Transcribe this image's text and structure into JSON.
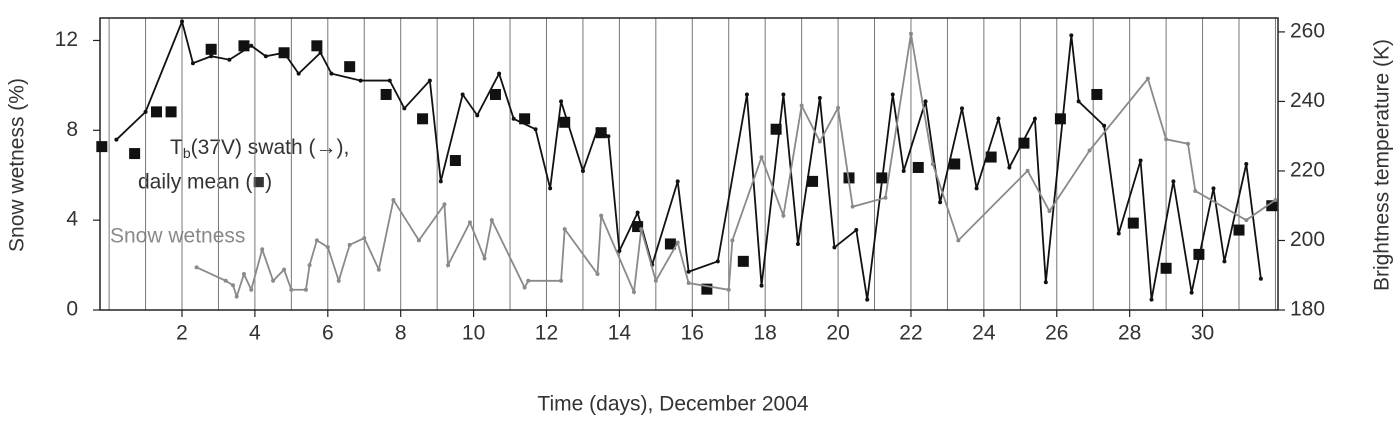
{
  "chart_data": {
    "type": "line",
    "xlabel": "Time (days), December 2004",
    "ylabel": "Snow wetness (%)",
    "y2label": "Brightness temperature (K)",
    "annotation": {
      "base": "T",
      "sub": "b",
      "line1": "(37V) swath (→),",
      "line2": "daily mean (■)"
    },
    "xlim": [
      -0.25,
      32.07
    ],
    "xticks": [
      2,
      4,
      6,
      8,
      10,
      12,
      14,
      16,
      18,
      20,
      22,
      24,
      26,
      28,
      30
    ],
    "xgrid": [
      0,
      1,
      2,
      3,
      4,
      5,
      6,
      7,
      8,
      9,
      10,
      11,
      12,
      13,
      14,
      15,
      16,
      17,
      18,
      19,
      20,
      21,
      22,
      23,
      24,
      25,
      26,
      27,
      28,
      29,
      30,
      31,
      32
    ],
    "ylim": [
      0,
      13
    ],
    "yticks": [
      0,
      4,
      8,
      12
    ],
    "y2lim": [
      180,
      264
    ],
    "y2ticks": [
      180,
      200,
      220,
      240,
      260
    ],
    "series": [
      {
        "color": "#111111",
        "axis": "y2",
        "marker": "dot",
        "line": true,
        "x": [
          0.2,
          1.0,
          2.0,
          2.3,
          2.8,
          3.3,
          3.9,
          4.3,
          4.8,
          5.2,
          5.8,
          6.1,
          6.9,
          7.7,
          8.1,
          8.8,
          9.1,
          9.7,
          10.1,
          10.7,
          11.1,
          11.7,
          12.1,
          12.4,
          13.0,
          13.4,
          13.7,
          14.0,
          14.5,
          14.9,
          15.6,
          15.9,
          16.7,
          17.5,
          17.9,
          18.5,
          18.9,
          19.5,
          19.9,
          20.5,
          20.8,
          21.5,
          21.8,
          22.4,
          22.8,
          23.4,
          23.8,
          24.4,
          24.7,
          25.4,
          25.7,
          26.4,
          26.6,
          27.3,
          27.7,
          28.3,
          28.6,
          29.2,
          29.7,
          30.3,
          30.6,
          31.2,
          31.6
        ],
        "values": [
          229,
          237,
          263,
          251,
          253,
          252,
          256,
          253,
          254,
          248,
          254,
          248,
          246,
          246,
          238,
          246,
          217,
          242,
          236,
          248,
          235,
          232,
          215,
          240,
          220,
          232,
          230,
          197,
          208,
          193,
          217,
          191,
          194,
          242,
          187,
          242,
          199,
          241,
          198,
          203,
          183,
          242,
          220,
          240,
          211,
          238,
          215,
          235,
          221,
          235,
          188,
          259,
          240,
          233,
          202,
          223,
          183,
          217,
          185,
          215,
          194,
          222,
          189
        ]
      },
      {
        "color": "#111111",
        "axis": "y2",
        "marker": "square",
        "line": false,
        "x": [
          -0.2,
          0.7,
          1.3,
          1.7,
          2.8,
          3.7,
          4.8,
          5.7,
          6.6,
          7.6,
          8.6,
          9.5,
          10.6,
          11.4,
          12.5,
          13.5,
          14.5,
          15.4,
          16.4,
          17.4,
          18.3,
          19.3,
          20.3,
          21.2,
          22.2,
          23.2,
          24.2,
          25.1,
          26.1,
          27.1,
          28.1,
          29.0,
          29.9,
          31.0,
          31.9
        ],
        "values": [
          227,
          225,
          237,
          237,
          255,
          256,
          254,
          256,
          250,
          242,
          235,
          223,
          242,
          235,
          234,
          231,
          204,
          199,
          186,
          194,
          232,
          217,
          218,
          218,
          221,
          222,
          224,
          228,
          235,
          242,
          205,
          192,
          196,
          203,
          210
        ]
      },
      {
        "name": "Snow wetness",
        "color": "#8a8a8a",
        "axis": "y",
        "marker": "dot",
        "line": true,
        "x": [
          2.4,
          3.2,
          3.4,
          3.5,
          3.7,
          3.9,
          4.2,
          4.5,
          4.8,
          5.0,
          5.4,
          5.5,
          5.7,
          6.0,
          6.3,
          6.6,
          7.0,
          7.4,
          7.8,
          8.5,
          9.2,
          9.3,
          9.9,
          10.3,
          10.5,
          11.4,
          11.5,
          12.4,
          12.5,
          13.4,
          13.5,
          14.4,
          14.6,
          15.0,
          15.6,
          15.9,
          17.0,
          17.1,
          17.9,
          18.5,
          19.0,
          19.5,
          20.0,
          20.4,
          21.3,
          22.0,
          22.6,
          23.3,
          25.2,
          25.8,
          26.9,
          28.5,
          29.0,
          29.6,
          29.8,
          31.2,
          32.0
        ],
        "values": [
          1.9,
          1.3,
          1.1,
          0.6,
          1.6,
          0.9,
          2.7,
          1.3,
          1.8,
          0.9,
          0.9,
          2.0,
          3.1,
          2.8,
          1.3,
          2.9,
          3.2,
          1.8,
          4.9,
          3.1,
          4.7,
          2.0,
          3.9,
          2.3,
          4.0,
          1.0,
          1.3,
          1.3,
          3.6,
          1.6,
          4.2,
          0.8,
          3.6,
          1.3,
          3.0,
          1.2,
          0.9,
          3.1,
          6.8,
          4.2,
          9.1,
          7.5,
          9.0,
          4.6,
          5.0,
          12.3,
          6.5,
          3.1,
          6.2,
          4.4,
          7.1,
          10.3,
          7.6,
          7.4,
          5.3,
          4.0,
          4.9
        ]
      }
    ]
  }
}
